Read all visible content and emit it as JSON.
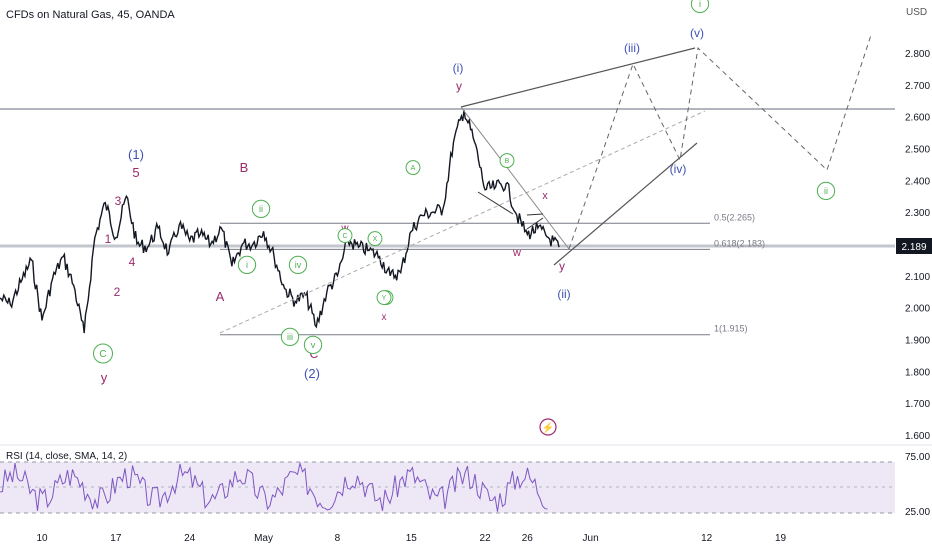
{
  "header": {
    "symbol_title": "CFDs on Natural Gas, 45, OANDA",
    "currency": "USD"
  },
  "chart_data": {
    "type": "line",
    "title": "CFDs on Natural Gas, 45, OANDA",
    "ylim": [
      1.55,
      2.95
    ],
    "y_ticks": [
      "2.800",
      "2.700",
      "2.600",
      "2.500",
      "2.400",
      "2.300",
      "2.200",
      "2.100",
      "2.000",
      "1.900",
      "1.800",
      "1.700",
      "1.600"
    ],
    "y_tick_values": [
      2.8,
      2.7,
      2.6,
      2.5,
      2.4,
      2.3,
      2.2,
      2.1,
      2.0,
      1.9,
      1.8,
      1.7,
      1.6
    ],
    "x_labels": [
      "10",
      "17",
      "24",
      "May",
      "8",
      "15",
      "22",
      "26",
      "Jun",
      "12",
      "19"
    ],
    "x_label_dates": [
      "2023-04-10",
      "2023-04-17",
      "2023-04-24",
      "2023-05-01",
      "2023-05-08",
      "2023-05-15",
      "2023-05-22",
      "2023-05-26",
      "2023-06-01",
      "2023-06-12",
      "2023-06-19"
    ],
    "grid": false,
    "series": [
      {
        "points": [
          [
            "2023-04-06",
            2.03
          ],
          [
            "2023-04-07",
            2.01
          ],
          [
            "2023-04-08",
            2.08
          ],
          [
            "2023-04-09",
            2.15
          ],
          [
            "2023-04-10",
            1.96
          ],
          [
            "2023-04-11",
            2.09
          ],
          [
            "2023-04-12",
            2.16
          ],
          [
            "2023-04-13",
            2.07
          ],
          [
            "2023-04-14",
            1.92
          ],
          [
            "2023-04-15",
            2.22
          ],
          [
            "2023-04-16",
            2.33
          ],
          [
            "2023-04-17",
            2.22
          ],
          [
            "2023-04-18",
            2.35
          ],
          [
            "2023-04-19",
            2.2
          ],
          [
            "2023-04-20",
            2.19
          ],
          [
            "2023-04-21",
            2.25
          ],
          [
            "2023-04-22",
            2.17
          ],
          [
            "2023-04-23",
            2.26
          ],
          [
            "2023-04-24",
            2.21
          ],
          [
            "2023-04-25",
            2.23
          ],
          [
            "2023-04-26",
            2.2
          ],
          [
            "2023-04-27",
            2.25
          ],
          [
            "2023-04-28",
            2.13
          ],
          [
            "2023-04-29",
            2.2
          ],
          [
            "2023-04-30",
            2.2
          ],
          [
            "2023-05-01",
            2.24
          ],
          [
            "2023-05-02",
            2.16
          ],
          [
            "2023-05-03",
            2.06
          ],
          [
            "2023-05-04",
            2.02
          ],
          [
            "2023-05-05",
            2.04
          ],
          [
            "2023-05-06",
            1.94
          ],
          [
            "2023-05-07",
            2.05
          ],
          [
            "2023-05-08",
            2.1
          ],
          [
            "2023-05-09",
            2.21
          ],
          [
            "2023-05-10",
            2.19
          ],
          [
            "2023-05-11",
            2.18
          ],
          [
            "2023-05-12",
            2.16
          ],
          [
            "2023-05-13",
            2.1
          ],
          [
            "2023-05-14",
            2.11
          ],
          [
            "2023-05-15",
            2.24
          ],
          [
            "2023-05-16",
            2.29
          ],
          [
            "2023-05-17",
            2.3
          ],
          [
            "2023-05-18",
            2.31
          ],
          [
            "2023-05-19",
            2.52
          ],
          [
            "2023-05-20",
            2.62
          ],
          [
            "2023-05-21",
            2.52
          ],
          [
            "2023-05-22",
            2.37
          ],
          [
            "2023-05-23",
            2.38
          ],
          [
            "2023-05-24",
            2.39
          ],
          [
            "2023-05-25",
            2.29
          ],
          [
            "2023-05-26",
            2.23
          ],
          [
            "2023-05-27",
            2.25
          ],
          [
            "2023-05-28",
            2.22
          ],
          [
            "2023-05-29",
            2.19
          ]
        ]
      }
    ],
    "current_price": 2.189,
    "fib_levels": [
      {
        "label": "0.5(2.265)",
        "value": 2.265
      },
      {
        "label": "0.618(2.183)",
        "value": 2.183
      },
      {
        "label": "1(1.915)",
        "value": 1.915
      }
    ],
    "wave_labels": [
      {
        "text": "(1)",
        "color": "#3f51b5"
      },
      {
        "text": "5",
        "color": "#9c2a6c"
      },
      {
        "text": "3",
        "color": "#9c2a6c"
      },
      {
        "text": "1",
        "color": "#9c2a6c"
      },
      {
        "text": "4",
        "color": "#9c2a6c"
      },
      {
        "text": "2",
        "color": "#9c2a6c"
      },
      {
        "text": "C",
        "color": "#4caf50",
        "circled": true
      },
      {
        "text": "y",
        "color": "#9c2a6c"
      },
      {
        "text": "B",
        "color": "#9c2a6c"
      },
      {
        "text": "A",
        "color": "#9c2a6c"
      },
      {
        "text": "C",
        "color": "#9c2a6c"
      },
      {
        "text": "ii",
        "color": "#4caf50",
        "circled": true
      },
      {
        "text": "i",
        "color": "#4caf50",
        "circled": true
      },
      {
        "text": "iv",
        "color": "#4caf50",
        "circled": true
      },
      {
        "text": "iii",
        "color": "#4caf50",
        "circled": true
      },
      {
        "text": "v",
        "color": "#4caf50",
        "circled": true
      },
      {
        "text": "(2)",
        "color": "#3f51b5"
      },
      {
        "text": "w",
        "color": "#9c2a6c"
      },
      {
        "text": "x",
        "color": "#9c2a6c"
      },
      {
        "text": "(i)",
        "color": "#3f51b5"
      },
      {
        "text": "y",
        "color": "#9c2a6c"
      },
      {
        "text": "(iii)",
        "color": "#3f51b5"
      },
      {
        "text": "(iv)",
        "color": "#3f51b5"
      },
      {
        "text": "(v)",
        "color": "#3f51b5"
      },
      {
        "text": "i",
        "color": "#4caf50",
        "circled": true
      },
      {
        "text": "ii",
        "color": "#4caf50",
        "circled": true
      },
      {
        "text": "(ii)",
        "color": "#3f51b5"
      },
      {
        "text": "x",
        "color": "#9c2a6c"
      },
      {
        "text": "w",
        "color": "#9c2a6c"
      },
      {
        "text": "y",
        "color": "#9c2a6c"
      },
      {
        "text": "A",
        "color": "#4caf50",
        "circled": true
      },
      {
        "text": "B",
        "color": "#4caf50",
        "circled": true
      },
      {
        "text": "C",
        "color": "#4caf50",
        "circled": true
      },
      {
        "text": "W",
        "color": "#4caf50",
        "circled": true
      },
      {
        "text": "X",
        "color": "#4caf50",
        "circled": true
      },
      {
        "text": "Y",
        "color": "#4caf50",
        "circled": true
      }
    ],
    "rsi": {
      "label": "RSI (14, close, SMA, 14, 2)",
      "ticks": [
        "75.00",
        "25.00"
      ],
      "upper": 75,
      "lower": 25
    }
  },
  "colors": {
    "price": "#131722",
    "axis_text": "#131722",
    "last_price_bg": "#131722",
    "wave_purple": "#9c2a6c",
    "wave_blue": "#3f51b5",
    "wave_green": "#4caf50",
    "rsi_line": "#7e57c2",
    "rsi_band": "#ede7f6"
  }
}
